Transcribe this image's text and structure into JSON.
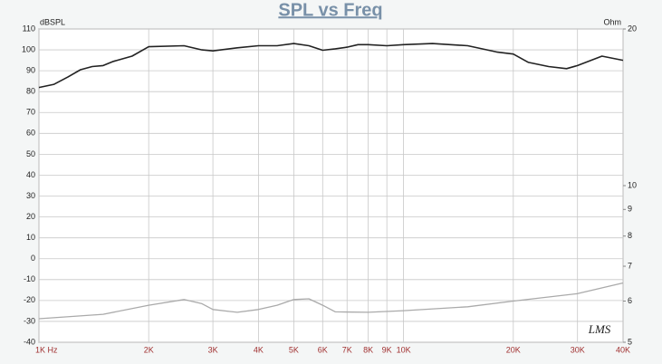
{
  "chart_data": {
    "type": "line",
    "title": "SPL vs Freq",
    "y_label": "dBSPL",
    "y2_label": "Ohm",
    "annotation": "LMS",
    "xscale": "log",
    "y2scale": "log",
    "grid": true,
    "xlim": [
      1000,
      40000
    ],
    "xticks": [
      {
        "value": 1000,
        "label": "1K Hz"
      },
      {
        "value": 2000,
        "label": "2K"
      },
      {
        "value": 3000,
        "label": "3K"
      },
      {
        "value": 4000,
        "label": "4K"
      },
      {
        "value": 5000,
        "label": "5K"
      },
      {
        "value": 6000,
        "label": "6K"
      },
      {
        "value": 7000,
        "label": "7K"
      },
      {
        "value": 8000,
        "label": "8K"
      },
      {
        "value": 9000,
        "label": "9K"
      },
      {
        "value": 10000,
        "label": "10K"
      },
      {
        "value": 20000,
        "label": "20K"
      },
      {
        "value": 30000,
        "label": "30K"
      },
      {
        "value": 40000,
        "label": "40K"
      }
    ],
    "ylim": [
      -40,
      110
    ],
    "yticks": [
      -40,
      -30,
      -20,
      -10,
      0,
      10,
      20,
      30,
      40,
      50,
      60,
      70,
      80,
      90,
      100,
      110
    ],
    "y2lim": [
      5,
      20
    ],
    "y2ticks": [
      5,
      6,
      7,
      8,
      9,
      10,
      20
    ],
    "series": [
      {
        "color": "#222222",
        "x": [
          1000,
          1100,
          1200,
          1300,
          1400,
          1500,
          1600,
          1800,
          2000,
          2500,
          2800,
          3000,
          3500,
          4000,
          4500,
          5000,
          5500,
          6000,
          6500,
          7000,
          7500,
          8000,
          9000,
          10000,
          12000,
          15000,
          18000,
          20000,
          22000,
          25000,
          28000,
          30000,
          35000,
          40000
        ],
        "values": [
          82,
          83.5,
          87,
          90.5,
          92,
          92.5,
          94.5,
          97,
          101.5,
          102,
          100,
          99.5,
          101,
          102,
          102,
          103,
          102,
          99.8,
          100.5,
          101.3,
          102.5,
          102.5,
          102,
          102.5,
          103,
          102,
          99,
          98,
          94,
          92,
          91,
          92.5,
          97,
          95
        ]
      },
      {
        "color": "#aaaaaa",
        "axis": "y2",
        "x": [
          1000,
          1500,
          2000,
          2500,
          2800,
          3000,
          3500,
          4000,
          4500,
          5000,
          5500,
          6000,
          6500,
          8000,
          10000,
          15000,
          20000,
          30000,
          40000
        ],
        "values": [
          5.55,
          5.66,
          5.89,
          6.04,
          5.93,
          5.78,
          5.71,
          5.78,
          5.89,
          6.04,
          6.06,
          5.89,
          5.72,
          5.71,
          5.75,
          5.85,
          6.0,
          6.2,
          6.5
        ]
      }
    ]
  }
}
